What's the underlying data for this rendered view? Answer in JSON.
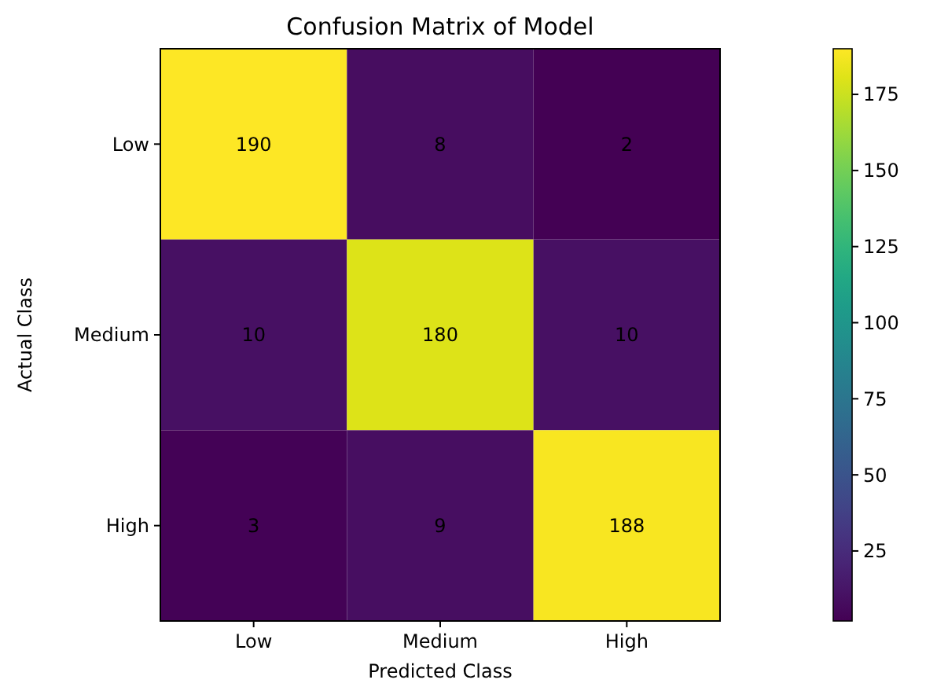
{
  "chart_data": {
    "type": "heatmap",
    "title": "Confusion Matrix of Model",
    "xlabel": "Predicted Class",
    "ylabel": "Actual Class",
    "categories": [
      "Low",
      "Medium",
      "High"
    ],
    "y_categories": [
      "Low",
      "Medium",
      "High"
    ],
    "cells": [
      [
        190,
        8,
        2
      ],
      [
        10,
        180,
        10
      ],
      [
        3,
        9,
        188
      ]
    ],
    "data_labels": true,
    "clim": [
      2,
      190
    ],
    "cticks": [
      25,
      50,
      75,
      100,
      125,
      150,
      175
    ]
  }
}
